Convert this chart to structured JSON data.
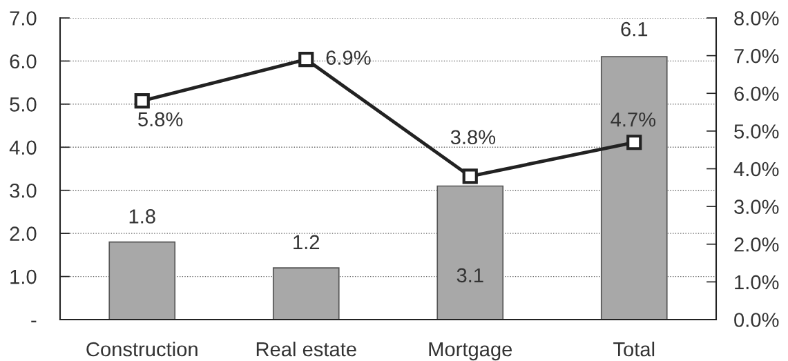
{
  "chart_data": {
    "type": "bar",
    "categories": [
      "Construction",
      "Real estate",
      "Mortgage",
      "Total"
    ],
    "series": [
      {
        "color": "#a8a8a8",
        "values": [
          1.8,
          1.2,
          3.1,
          6.1
        ],
        "value_labels": [
          "1.8",
          "1.2",
          "3.1",
          "6.1"
        ]
      },
      {
        "type": "line",
        "axis": "y2",
        "color": "#222222",
        "marker": "square",
        "values": [
          5.8,
          6.9,
          3.8,
          4.7
        ],
        "value_labels": [
          "5.8%",
          "6.9%",
          "3.8%",
          "4.7%"
        ]
      }
    ],
    "ylim": [
      0,
      7
    ],
    "yticks": [
      {
        "value": 0,
        "label": "-"
      },
      {
        "value": 1,
        "label": "1.0"
      },
      {
        "value": 2,
        "label": "2.0"
      },
      {
        "value": 3,
        "label": "3.0"
      },
      {
        "value": 4,
        "label": "4.0"
      },
      {
        "value": 5,
        "label": "5.0"
      },
      {
        "value": 6,
        "label": "6.0"
      },
      {
        "value": 7,
        "label": "7.0"
      }
    ],
    "y2lim": [
      0,
      8
    ],
    "y2ticks": [
      {
        "value": 0,
        "label": "0.0%"
      },
      {
        "value": 1,
        "label": "1.0%"
      },
      {
        "value": 2,
        "label": "2.0%"
      },
      {
        "value": 3,
        "label": "3.0%"
      },
      {
        "value": 4,
        "label": "4.0%"
      },
      {
        "value": 5,
        "label": "5.0%"
      },
      {
        "value": 6,
        "label": "6.0%"
      },
      {
        "value": 7,
        "label": "7.0%"
      },
      {
        "value": 8,
        "label": "8.0%"
      }
    ],
    "grid": "y"
  }
}
